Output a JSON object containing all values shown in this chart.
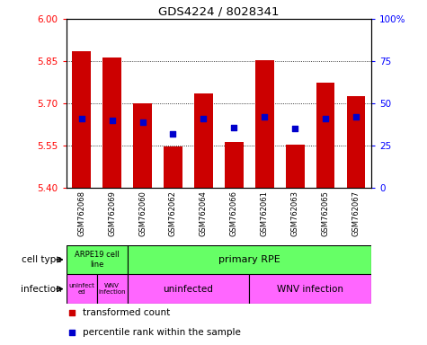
{
  "title": "GDS4224 / 8028341",
  "samples": [
    "GSM762068",
    "GSM762069",
    "GSM762060",
    "GSM762062",
    "GSM762064",
    "GSM762066",
    "GSM762061",
    "GSM762063",
    "GSM762065",
    "GSM762067"
  ],
  "transformed_count": [
    5.885,
    5.862,
    5.7,
    5.548,
    5.735,
    5.565,
    5.853,
    5.553,
    5.773,
    5.725
  ],
  "percentile_rank": [
    41,
    40,
    39,
    32,
    41,
    36,
    42,
    35,
    41,
    42
  ],
  "ylim_left": [
    5.4,
    6.0
  ],
  "ylim_right": [
    0,
    100
  ],
  "yticks_left": [
    5.4,
    5.55,
    5.7,
    5.85,
    6.0
  ],
  "yticks_right": [
    0,
    25,
    50,
    75,
    100
  ],
  "bar_color": "#CC0000",
  "dot_color": "#0000CC",
  "bar_bottom": 5.4,
  "cell_type_bg": "#66FF66",
  "infection_bg": "#FF66FF",
  "grid_lines": [
    5.55,
    5.7,
    5.85
  ],
  "legend_items": [
    {
      "color": "#CC0000",
      "label": "transformed count"
    },
    {
      "color": "#0000CC",
      "label": "percentile rank within the sample"
    }
  ],
  "cell_type_splits": [
    {
      "label": "ARPE19 cell\nline",
      "start": 0,
      "end": 2
    },
    {
      "label": "primary RPE",
      "start": 2,
      "end": 10
    }
  ],
  "infection_splits": [
    {
      "label": "uninfect\ned",
      "start": 0,
      "end": 1
    },
    {
      "label": "WNV\ninfection",
      "start": 1,
      "end": 2
    },
    {
      "label": "uninfected",
      "start": 2,
      "end": 6
    },
    {
      "label": "WNV infection",
      "start": 6,
      "end": 10
    }
  ]
}
